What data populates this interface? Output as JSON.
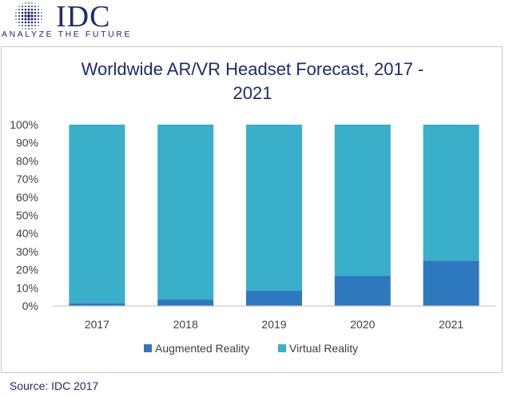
{
  "logo": {
    "text": "IDC",
    "tagline": "ANALYZE THE FUTURE"
  },
  "colors": {
    "augmented": "#2e78be",
    "virtual": "#3aafc9",
    "axis_text": "#404040",
    "title": "#1f2a6e"
  },
  "chart_data": {
    "type": "bar",
    "stacked": true,
    "percent_stacked": true,
    "title_line1": "Worldwide AR/VR Headset Forecast, 2017 -",
    "title_line2": "2021",
    "categories": [
      "2017",
      "2018",
      "2019",
      "2020",
      "2021"
    ],
    "series": [
      {
        "name": "Augmented Reality",
        "values": [
          1.5,
          3.5,
          8.5,
          16.5,
          25
        ],
        "color": "#2e78be"
      },
      {
        "name": "Virtual Reality",
        "values": [
          98.5,
          96.5,
          91.5,
          83.5,
          75
        ],
        "color": "#3aafc9"
      }
    ],
    "y_ticks": [
      "0%",
      "10%",
      "20%",
      "30%",
      "40%",
      "50%",
      "60%",
      "70%",
      "80%",
      "90%",
      "100%"
    ],
    "ylim": [
      0,
      100
    ],
    "grid": false,
    "legend_position": "bottom"
  },
  "source": "Source: IDC 2017"
}
